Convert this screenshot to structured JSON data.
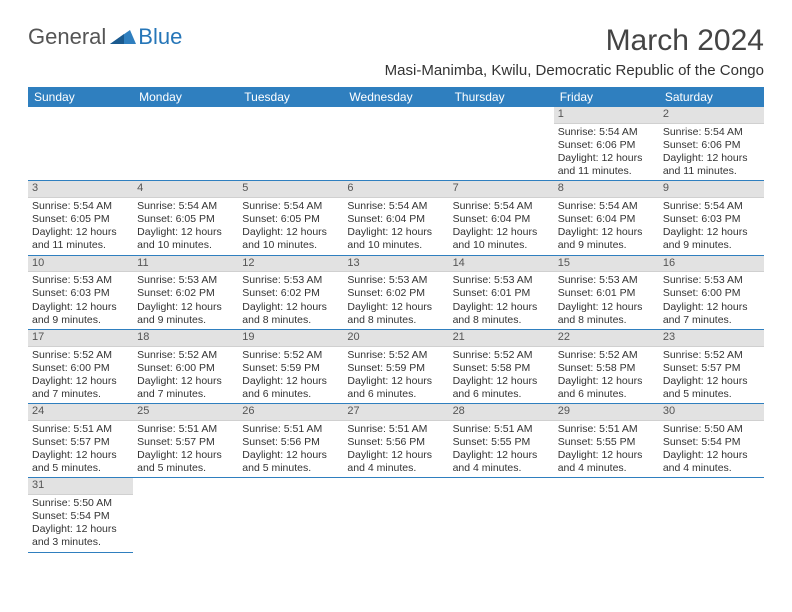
{
  "brand": {
    "part1": "General",
    "part2": "Blue"
  },
  "title": "March 2024",
  "location": "Masi-Manimba, Kwilu, Democratic Republic of the Congo",
  "colors": {
    "header_bg": "#2f7fbf",
    "header_fg": "#ffffff",
    "daynum_bg": "#e2e2e2",
    "row_divider": "#2f7fbf",
    "text": "#333333",
    "title_color": "#444444"
  },
  "layout": {
    "cols": 7,
    "rows": 6,
    "first_day_col": 5
  },
  "weekdays": [
    "Sunday",
    "Monday",
    "Tuesday",
    "Wednesday",
    "Thursday",
    "Friday",
    "Saturday"
  ],
  "days": [
    {
      "n": 1,
      "sr": "5:54 AM",
      "ss": "6:06 PM",
      "dl": "12 hours and 11 minutes."
    },
    {
      "n": 2,
      "sr": "5:54 AM",
      "ss": "6:06 PM",
      "dl": "12 hours and 11 minutes."
    },
    {
      "n": 3,
      "sr": "5:54 AM",
      "ss": "6:05 PM",
      "dl": "12 hours and 11 minutes."
    },
    {
      "n": 4,
      "sr": "5:54 AM",
      "ss": "6:05 PM",
      "dl": "12 hours and 10 minutes."
    },
    {
      "n": 5,
      "sr": "5:54 AM",
      "ss": "6:05 PM",
      "dl": "12 hours and 10 minutes."
    },
    {
      "n": 6,
      "sr": "5:54 AM",
      "ss": "6:04 PM",
      "dl": "12 hours and 10 minutes."
    },
    {
      "n": 7,
      "sr": "5:54 AM",
      "ss": "6:04 PM",
      "dl": "12 hours and 10 minutes."
    },
    {
      "n": 8,
      "sr": "5:54 AM",
      "ss": "6:04 PM",
      "dl": "12 hours and 9 minutes."
    },
    {
      "n": 9,
      "sr": "5:54 AM",
      "ss": "6:03 PM",
      "dl": "12 hours and 9 minutes."
    },
    {
      "n": 10,
      "sr": "5:53 AM",
      "ss": "6:03 PM",
      "dl": "12 hours and 9 minutes."
    },
    {
      "n": 11,
      "sr": "5:53 AM",
      "ss": "6:02 PM",
      "dl": "12 hours and 9 minutes."
    },
    {
      "n": 12,
      "sr": "5:53 AM",
      "ss": "6:02 PM",
      "dl": "12 hours and 8 minutes."
    },
    {
      "n": 13,
      "sr": "5:53 AM",
      "ss": "6:02 PM",
      "dl": "12 hours and 8 minutes."
    },
    {
      "n": 14,
      "sr": "5:53 AM",
      "ss": "6:01 PM",
      "dl": "12 hours and 8 minutes."
    },
    {
      "n": 15,
      "sr": "5:53 AM",
      "ss": "6:01 PM",
      "dl": "12 hours and 8 minutes."
    },
    {
      "n": 16,
      "sr": "5:53 AM",
      "ss": "6:00 PM",
      "dl": "12 hours and 7 minutes."
    },
    {
      "n": 17,
      "sr": "5:52 AM",
      "ss": "6:00 PM",
      "dl": "12 hours and 7 minutes."
    },
    {
      "n": 18,
      "sr": "5:52 AM",
      "ss": "6:00 PM",
      "dl": "12 hours and 7 minutes."
    },
    {
      "n": 19,
      "sr": "5:52 AM",
      "ss": "5:59 PM",
      "dl": "12 hours and 6 minutes."
    },
    {
      "n": 20,
      "sr": "5:52 AM",
      "ss": "5:59 PM",
      "dl": "12 hours and 6 minutes."
    },
    {
      "n": 21,
      "sr": "5:52 AM",
      "ss": "5:58 PM",
      "dl": "12 hours and 6 minutes."
    },
    {
      "n": 22,
      "sr": "5:52 AM",
      "ss": "5:58 PM",
      "dl": "12 hours and 6 minutes."
    },
    {
      "n": 23,
      "sr": "5:52 AM",
      "ss": "5:57 PM",
      "dl": "12 hours and 5 minutes."
    },
    {
      "n": 24,
      "sr": "5:51 AM",
      "ss": "5:57 PM",
      "dl": "12 hours and 5 minutes."
    },
    {
      "n": 25,
      "sr": "5:51 AM",
      "ss": "5:57 PM",
      "dl": "12 hours and 5 minutes."
    },
    {
      "n": 26,
      "sr": "5:51 AM",
      "ss": "5:56 PM",
      "dl": "12 hours and 5 minutes."
    },
    {
      "n": 27,
      "sr": "5:51 AM",
      "ss": "5:56 PM",
      "dl": "12 hours and 4 minutes."
    },
    {
      "n": 28,
      "sr": "5:51 AM",
      "ss": "5:55 PM",
      "dl": "12 hours and 4 minutes."
    },
    {
      "n": 29,
      "sr": "5:51 AM",
      "ss": "5:55 PM",
      "dl": "12 hours and 4 minutes."
    },
    {
      "n": 30,
      "sr": "5:50 AM",
      "ss": "5:54 PM",
      "dl": "12 hours and 4 minutes."
    },
    {
      "n": 31,
      "sr": "5:50 AM",
      "ss": "5:54 PM",
      "dl": "12 hours and 3 minutes."
    }
  ],
  "labels": {
    "sunrise": "Sunrise:",
    "sunset": "Sunset:",
    "daylight": "Daylight:"
  }
}
